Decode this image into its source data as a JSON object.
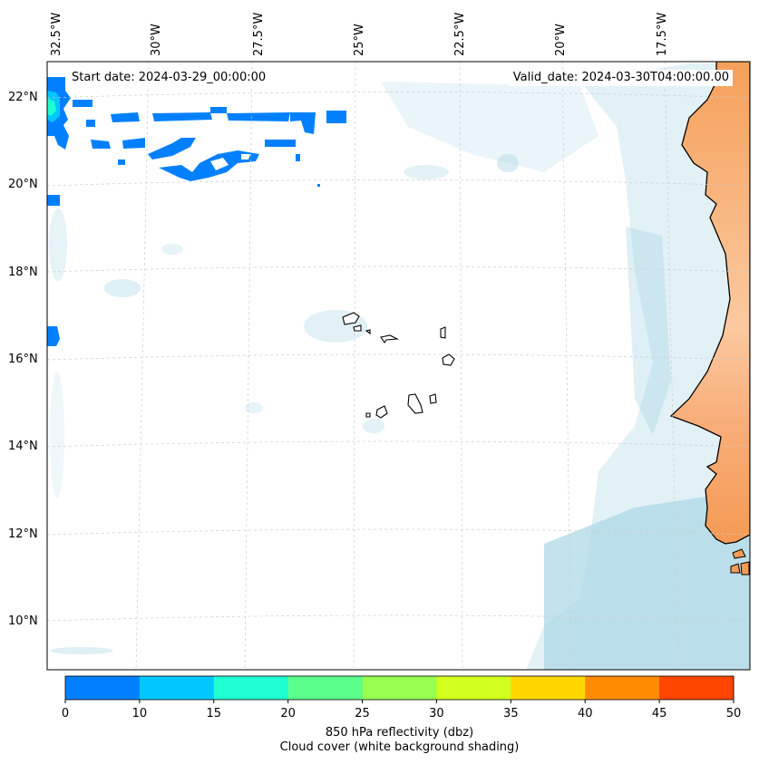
{
  "map": {
    "start_date": "Start date: 2024-03-29_00:00:00",
    "valid_date": "Valid_date: 2024-03-30T04:00:00.00",
    "lon_labels": [
      "32.5°W",
      "30°W",
      "27.5°W",
      "25°W",
      "22.5°W",
      "20°W",
      "17.5°W"
    ],
    "lat_labels": [
      "22°N",
      "20°N",
      "18°N",
      "16°N",
      "14°N",
      "12°N",
      "10°N"
    ],
    "region": "Cape Verde / West African coast",
    "colors": {
      "land": "#f5a05a",
      "cloud": "#add8e6",
      "coastline": "#000000",
      "gridline": "#cccccc"
    }
  },
  "colorbar": {
    "ticks": [
      "0",
      "10",
      "15",
      "20",
      "25",
      "30",
      "35",
      "40",
      "45",
      "50"
    ],
    "colors": [
      "#0080ff",
      "#00c8ff",
      "#1effd2",
      "#5aff8c",
      "#96ff50",
      "#d2ff1e",
      "#ffd700",
      "#ff8c00",
      "#ff4500"
    ],
    "label_line1": "850 hPa reflectivity (dbz)",
    "label_line2": "Cloud cover (white background shading)"
  }
}
